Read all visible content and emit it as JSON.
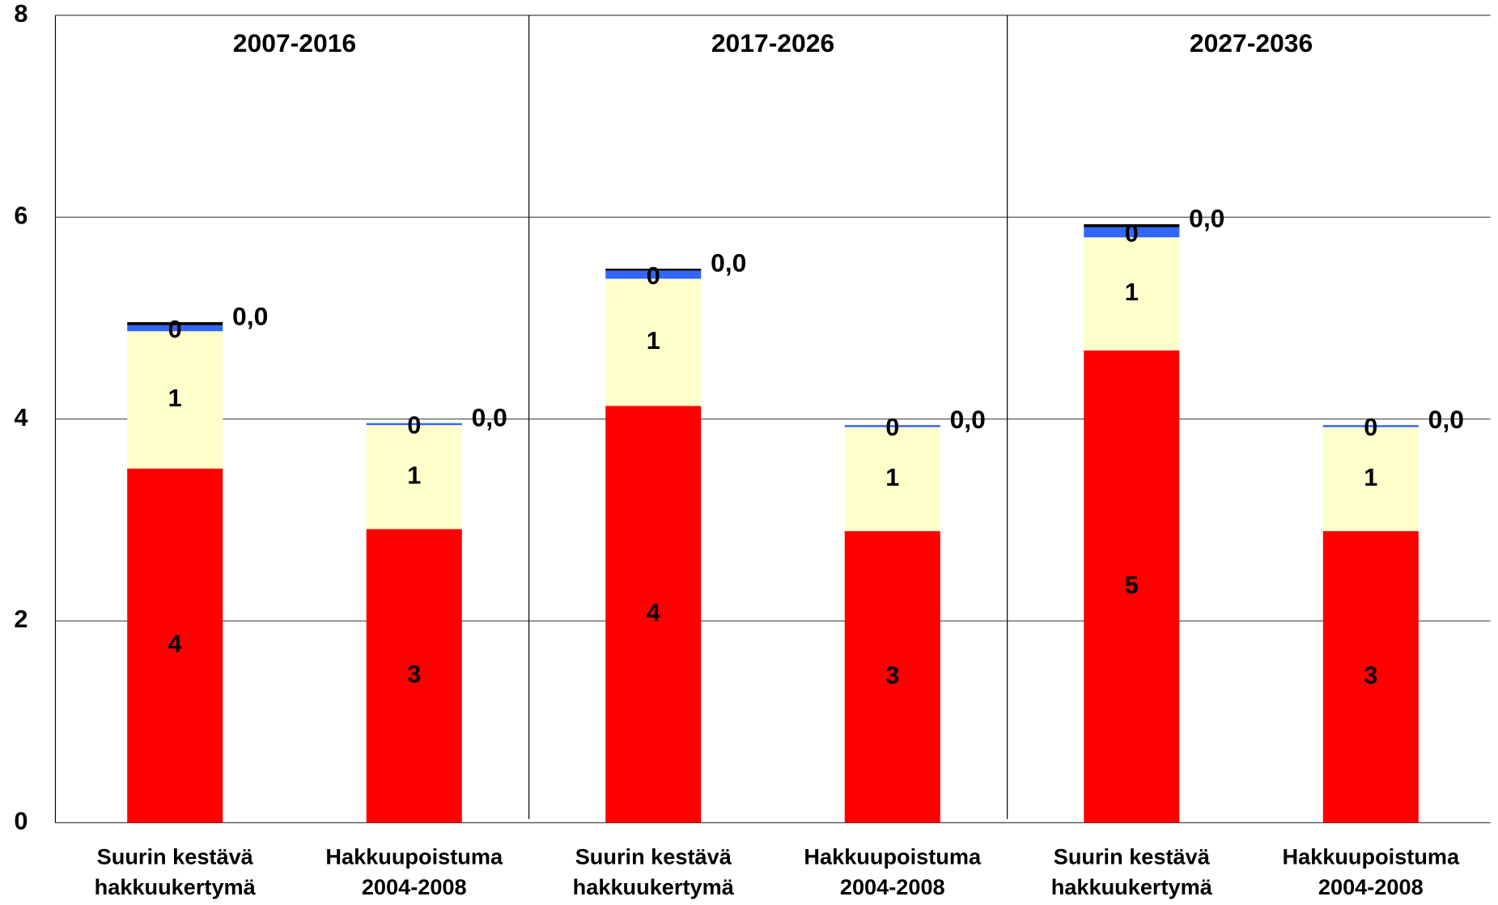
{
  "chart_data": {
    "type": "stacked_bar",
    "groups": [
      "2007-2016",
      "2017-2026",
      "2027-2036"
    ],
    "categories": [
      [
        "Suurin kestävä",
        "hakkuukertymä"
      ],
      [
        "Hakkuupoistuma",
        "2004-2008"
      ],
      [
        "Suurin kestävä",
        "hakkuukertymä"
      ],
      [
        "Hakkuupoistuma",
        "2004-2008"
      ],
      [
        "Suurin kestävä",
        "hakkuukertymä"
      ],
      [
        "Hakkuupoistuma",
        "2004-2008"
      ]
    ],
    "series": [
      {
        "color": "#ff0000",
        "values": [
          3.51,
          2.91,
          4.13,
          2.89,
          4.68,
          2.89
        ],
        "value_labels": [
          "4",
          "3",
          "4",
          "3",
          "5",
          "3"
        ]
      },
      {
        "color": "#ffffcc",
        "values": [
          1.36,
          1.03,
          1.26,
          1.03,
          1.12,
          1.03
        ],
        "value_labels": [
          "1",
          "1",
          "1",
          "1",
          "1",
          "1"
        ]
      },
      {
        "color": "#3366ff",
        "values": [
          0.06,
          0.02,
          0.08,
          0.02,
          0.1,
          0.02
        ],
        "value_labels": [
          "0",
          "0",
          "0",
          "0",
          "0",
          "0"
        ]
      },
      {
        "color": "#000000",
        "values": [
          0.03,
          0,
          0.02,
          0,
          0.03,
          0
        ],
        "value_labels": [
          "0,0",
          "0,0",
          "0,0",
          "0,0",
          "0,0",
          "0,0"
        ]
      }
    ],
    "ylim": [
      0,
      8
    ],
    "yticks": [
      0,
      2,
      4,
      6,
      8
    ],
    "grid": true
  }
}
